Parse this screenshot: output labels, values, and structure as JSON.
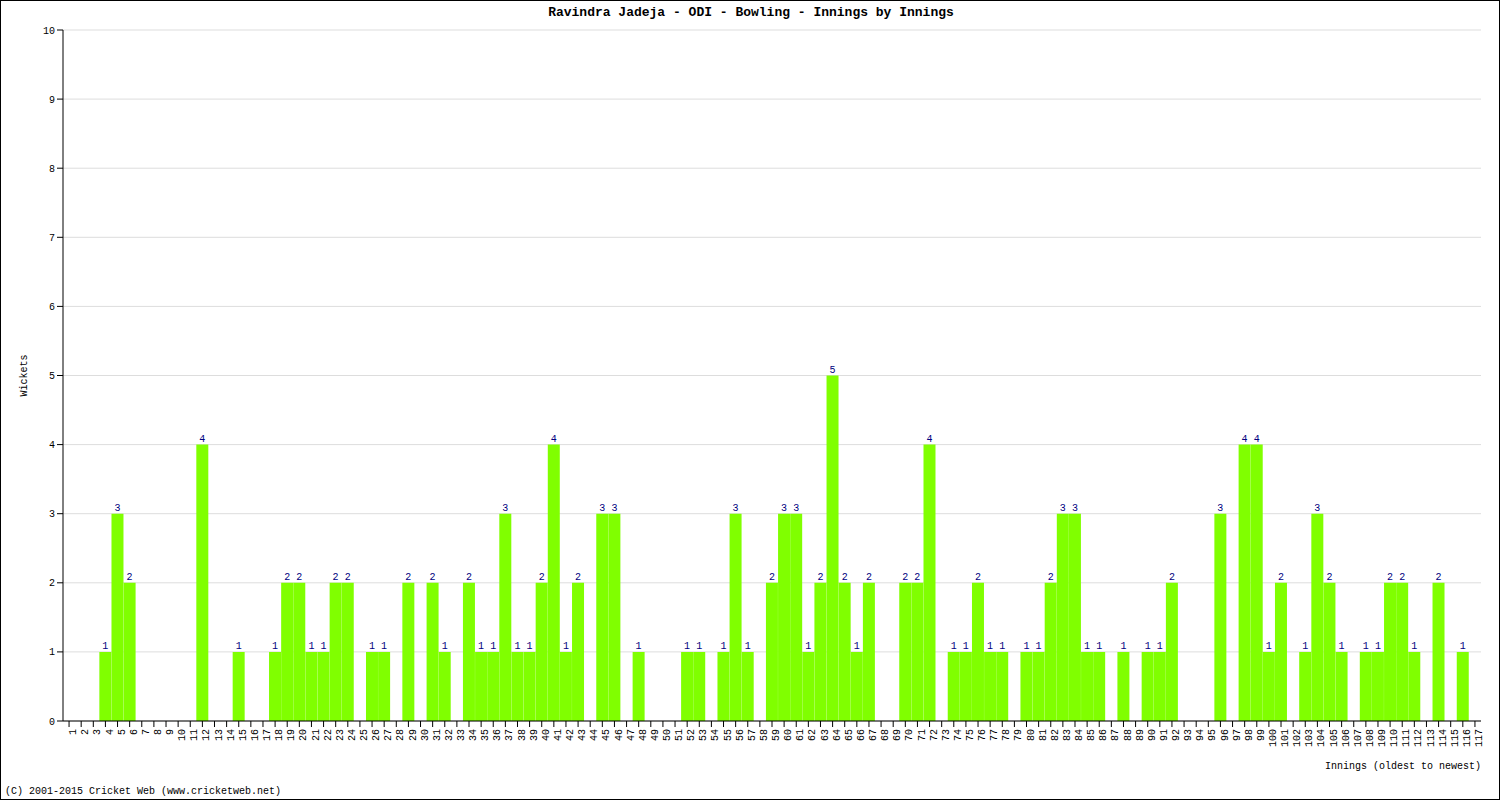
{
  "chart_data": {
    "type": "bar",
    "title": "Ravindra Jadeja - ODI - Bowling - Innings by Innings",
    "x_label": "Innings (oldest to newest)",
    "y_label": "Wickets",
    "footer": "(C) 2001-2015 Cricket Web (www.cricketweb.net)",
    "categories": [
      "1",
      "2",
      "3",
      "4",
      "5",
      "6",
      "7",
      "8",
      "9",
      "10",
      "11",
      "12",
      "13",
      "14",
      "15",
      "16",
      "17",
      "18",
      "19",
      "20",
      "21",
      "22",
      "23",
      "24",
      "25",
      "26",
      "27",
      "28",
      "29",
      "30",
      "31",
      "32",
      "33",
      "34",
      "35",
      "36",
      "37",
      "38",
      "39",
      "40",
      "41",
      "42",
      "43",
      "44",
      "45",
      "46",
      "47",
      "48",
      "49",
      "50",
      "51",
      "52",
      "53",
      "54",
      "55",
      "56",
      "57",
      "58",
      "59",
      "60",
      "61",
      "62",
      "63",
      "64",
      "65",
      "66",
      "67",
      "68",
      "69",
      "70",
      "71",
      "72",
      "73",
      "74",
      "75",
      "76",
      "77",
      "78",
      "79",
      "80",
      "81",
      "82",
      "83",
      "84",
      "85",
      "86",
      "87",
      "88",
      "89",
      "90",
      "91",
      "92",
      "93",
      "94",
      "95",
      "96",
      "97",
      "98",
      "99",
      "100",
      "101",
      "102",
      "103",
      "104",
      "105",
      "106",
      "107",
      "108",
      "109",
      "110",
      "111",
      "112",
      "113",
      "114",
      "115",
      "116",
      "117"
    ],
    "values": [
      0,
      0,
      0,
      1,
      3,
      2,
      0,
      0,
      0,
      0,
      0,
      4,
      0,
      0,
      1,
      0,
      0,
      1,
      2,
      2,
      1,
      1,
      2,
      2,
      0,
      1,
      1,
      0,
      2,
      0,
      2,
      1,
      0,
      2,
      1,
      1,
      3,
      1,
      1,
      2,
      4,
      1,
      2,
      0,
      3,
      3,
      0,
      1,
      0,
      0,
      0,
      1,
      1,
      0,
      1,
      3,
      1,
      0,
      2,
      3,
      3,
      1,
      2,
      5,
      2,
      1,
      2,
      0,
      0,
      2,
      2,
      4,
      0,
      1,
      1,
      2,
      1,
      1,
      0,
      1,
      1,
      2,
      3,
      3,
      1,
      1,
      0,
      1,
      0,
      1,
      1,
      2,
      0,
      0,
      0,
      3,
      0,
      4,
      4,
      1,
      2,
      0,
      1,
      3,
      2,
      1,
      0,
      1,
      1,
      2,
      2,
      1,
      0,
      2,
      0,
      1,
      0
    ],
    "color": "#80ff00",
    "ylim": [
      0,
      10
    ],
    "yticks": [
      0,
      1,
      2,
      3,
      4,
      5,
      6,
      7,
      8,
      9,
      10
    ],
    "grid": true,
    "data_labels": true
  }
}
